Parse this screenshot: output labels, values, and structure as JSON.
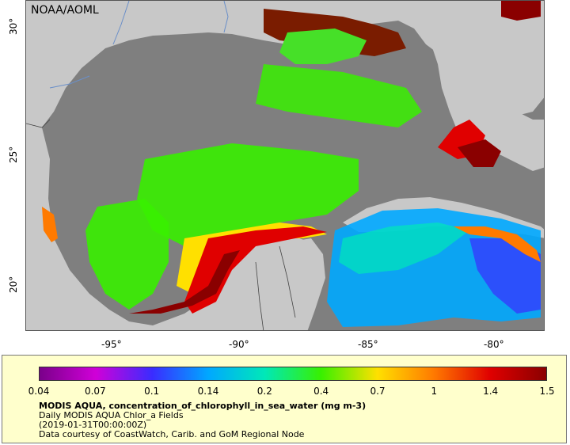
{
  "map": {
    "credit": "NOAA/AOML",
    "lat_ticks": [
      {
        "label": "30°",
        "value": 30
      },
      {
        "label": "25°",
        "value": 25
      },
      {
        "label": "20°",
        "value": 20
      }
    ],
    "lon_ticks": [
      {
        "label": "-95°",
        "value": -95
      },
      {
        "label": "-90°",
        "value": -90
      },
      {
        "label": "-85°",
        "value": -85
      },
      {
        "label": "-80°",
        "value": -80
      }
    ],
    "colors": {
      "land": "#c8c8c8",
      "no_data_water": "#7f7f7f",
      "coast": "#555555",
      "rivers": "#6a8fc9"
    }
  },
  "legend": {
    "title": "MODIS AQUA, concentration_of_chlorophyll_in_sea_water (mg m-3)",
    "line1": "Daily MODIS AQUA Chlor_a Fields",
    "line2": "(2019-01-31T00:00:00Z)",
    "line3": "Data courtesy of CoastWatch, Carib. and GoM Regional Node",
    "scale_labels": [
      "0.04",
      "0.07",
      "0.1",
      "0.14",
      "0.2",
      "0.4",
      "0.7",
      "1",
      "1.4",
      "1.5"
    ],
    "scale_colors": [
      "#7a008a",
      "#d000d8",
      "#3a2cff",
      "#00a8ff",
      "#00e8b8",
      "#38f000",
      "#ffe000",
      "#ff7a00",
      "#e00000",
      "#8a0000"
    ]
  }
}
